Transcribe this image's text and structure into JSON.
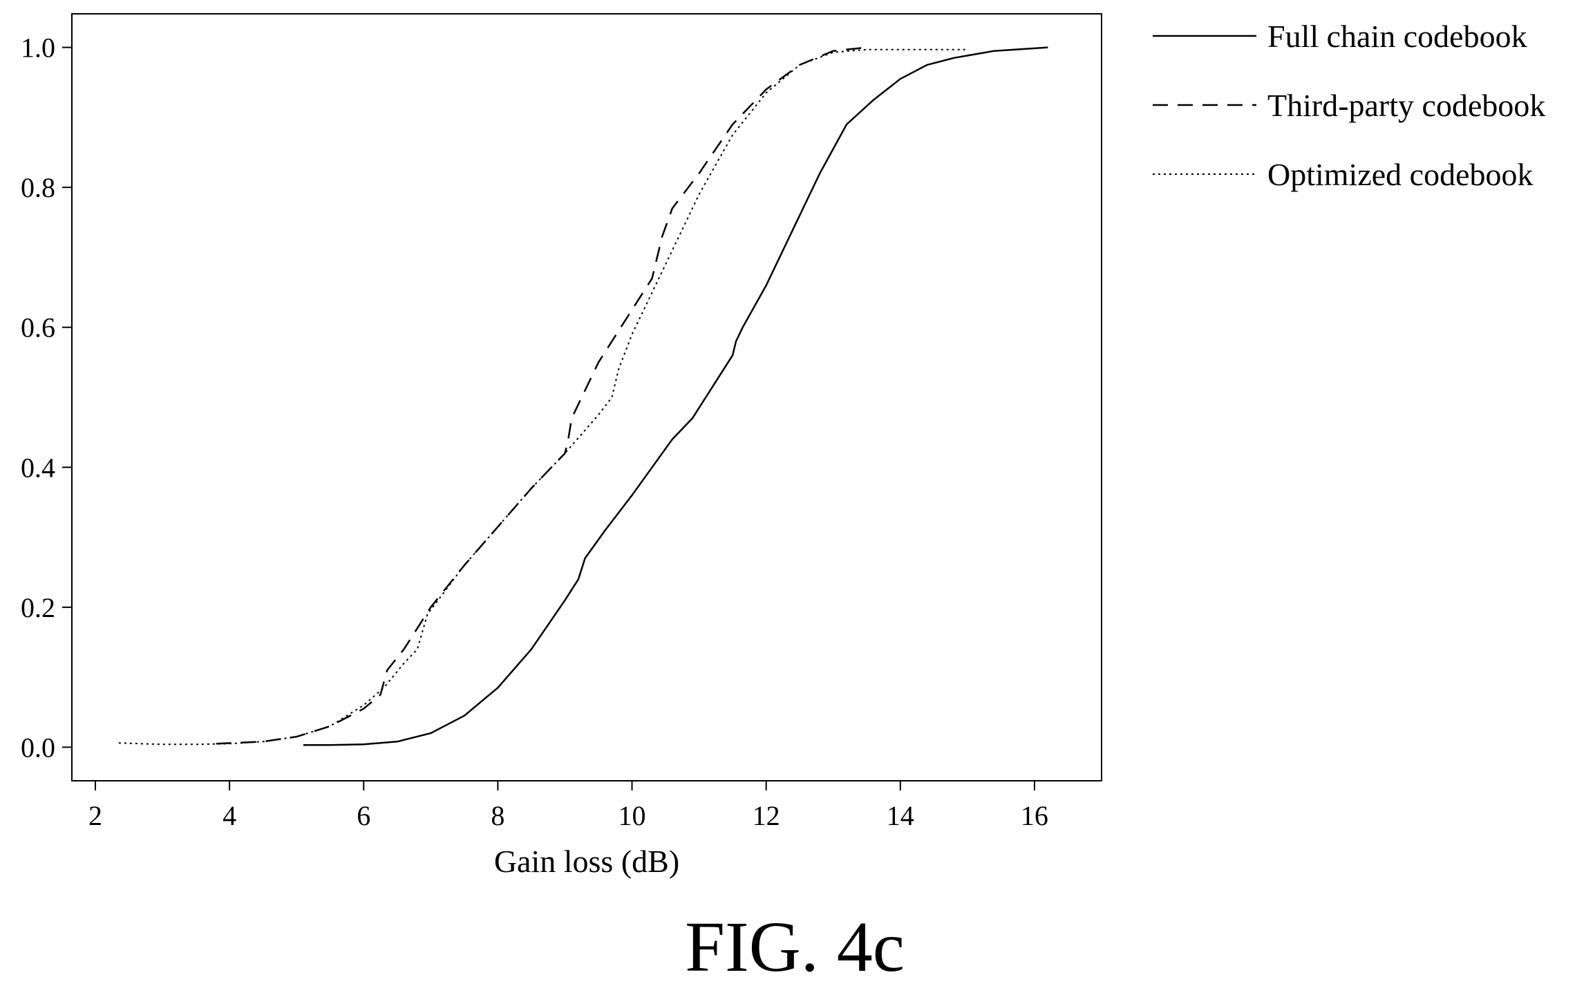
{
  "chart_data": {
    "type": "line",
    "xlabel": "Gain loss (dB)",
    "ylabel": "",
    "xlim": [
      1.65,
      17.0
    ],
    "ylim": [
      -0.048,
      1.048
    ],
    "xticks": [
      2,
      4,
      6,
      8,
      10,
      12,
      14,
      16
    ],
    "yticks": [
      0.0,
      0.2,
      0.4,
      0.6,
      0.8,
      1.0
    ],
    "xtick_labels": [
      "2",
      "4",
      "6",
      "8",
      "10",
      "12",
      "14",
      "16"
    ],
    "ytick_labels": [
      "0.0",
      "0.2",
      "0.4",
      "0.6",
      "0.8",
      "1.0"
    ],
    "grid": false,
    "legend_position": "outside right, top",
    "series": [
      {
        "name": "Full chain codebook",
        "line_style": "solid",
        "x": [
          5.1,
          5.5,
          6.0,
          6.5,
          7.0,
          7.5,
          8.0,
          8.5,
          9.0,
          9.2,
          9.3,
          9.6,
          10.0,
          10.3,
          10.6,
          10.9,
          11.1,
          11.3,
          11.5,
          11.55,
          11.65,
          12.0,
          12.4,
          12.8,
          13.2,
          13.6,
          14.0,
          14.4,
          14.8,
          15.4,
          16.2
        ],
        "y": [
          0.003,
          0.003,
          0.004,
          0.008,
          0.02,
          0.045,
          0.085,
          0.14,
          0.21,
          0.24,
          0.27,
          0.31,
          0.36,
          0.4,
          0.44,
          0.47,
          0.5,
          0.53,
          0.56,
          0.58,
          0.6,
          0.66,
          0.74,
          0.82,
          0.89,
          0.925,
          0.955,
          0.975,
          0.985,
          0.995,
          1.0
        ]
      },
      {
        "name": "Third-party codebook",
        "line_style": "dashed",
        "x": [
          3.8,
          4.5,
          5.0,
          5.5,
          6.0,
          6.25,
          6.35,
          6.6,
          7.0,
          7.5,
          8.0,
          8.5,
          9.0,
          9.05,
          9.1,
          9.5,
          10.0,
          10.3,
          10.45,
          10.6,
          11.0,
          11.5,
          12.0,
          12.5,
          13.0,
          13.5
        ],
        "y": [
          0.005,
          0.008,
          0.015,
          0.03,
          0.055,
          0.075,
          0.11,
          0.14,
          0.2,
          0.26,
          0.315,
          0.37,
          0.42,
          0.44,
          0.47,
          0.55,
          0.625,
          0.67,
          0.73,
          0.77,
          0.82,
          0.89,
          0.94,
          0.975,
          0.995,
          1.0
        ]
      },
      {
        "name": "Optimized codebook",
        "line_style": "dotted",
        "x": [
          2.35,
          3.0,
          3.5,
          4.0,
          4.5,
          5.0,
          5.5,
          6.0,
          6.3,
          6.6,
          6.8,
          6.95,
          7.5,
          8.0,
          8.5,
          9.0,
          9.5,
          9.7,
          9.8,
          10.0,
          10.5,
          11.0,
          11.5,
          12.0,
          12.5,
          13.0,
          13.5,
          14.0,
          15.0
        ],
        "y": [
          0.006,
          0.004,
          0.004,
          0.005,
          0.008,
          0.015,
          0.03,
          0.06,
          0.085,
          0.12,
          0.14,
          0.19,
          0.26,
          0.315,
          0.37,
          0.42,
          0.475,
          0.5,
          0.54,
          0.59,
          0.69,
          0.79,
          0.875,
          0.935,
          0.975,
          0.993,
          0.997,
          0.997,
          0.997
        ]
      }
    ]
  },
  "caption": "FIG. 4c"
}
